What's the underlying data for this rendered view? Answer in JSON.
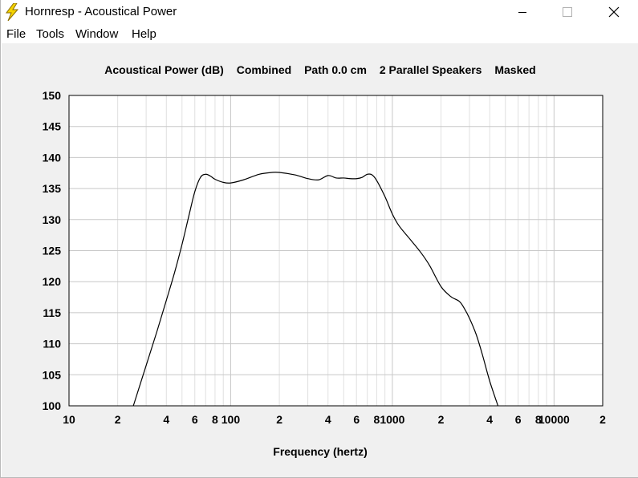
{
  "window": {
    "title": "Hornresp - Acoustical Power",
    "icon": "lightning-icon",
    "controls": {
      "minimize": "minimize-icon",
      "maximize": "maximize-icon",
      "close": "close-icon"
    }
  },
  "menu": {
    "items": [
      {
        "label": "File"
      },
      {
        "label": "Tools"
      },
      {
        "label": "Window"
      },
      {
        "label": "Help"
      }
    ]
  },
  "plot_header": {
    "quantity": "Acoustical Power (dB)",
    "mode": "Combined",
    "path": "Path 0.0 cm",
    "speakers": "2 Parallel Speakers",
    "masked": "Masked"
  },
  "colors": {
    "background": "#f0f0f0",
    "plot_area": "#ffffff",
    "grid_major": "#c8c8c8",
    "grid_minor": "#e0e0e0",
    "curve": "#000000"
  },
  "chart_data": {
    "type": "line",
    "title": "Acoustical Power (dB)   Combined   Path 0.0 cm   2 Parallel Speakers   Masked",
    "xlabel": "Frequency (hertz)",
    "ylabel": "",
    "xscale": "log",
    "xlim": [
      10,
      20000
    ],
    "ylim": [
      100,
      150
    ],
    "grid": true,
    "y_tick_labels": [
      "100",
      "105",
      "110",
      "115",
      "120",
      "125",
      "130",
      "135",
      "140",
      "145",
      "150"
    ],
    "x_tick_labels": [
      {
        "x": 10,
        "label": "10"
      },
      {
        "x": 20,
        "label": "2"
      },
      {
        "x": 40,
        "label": "4"
      },
      {
        "x": 60,
        "label": "6"
      },
      {
        "x": 80,
        "label": "8"
      },
      {
        "x": 100,
        "label": "100"
      },
      {
        "x": 200,
        "label": "2"
      },
      {
        "x": 400,
        "label": "4"
      },
      {
        "x": 600,
        "label": "6"
      },
      {
        "x": 800,
        "label": "8"
      },
      {
        "x": 1000,
        "label": "1000"
      },
      {
        "x": 2000,
        "label": "2"
      },
      {
        "x": 4000,
        "label": "4"
      },
      {
        "x": 6000,
        "label": "6"
      },
      {
        "x": 8000,
        "label": "8"
      },
      {
        "x": 10000,
        "label": "10000"
      },
      {
        "x": 20000,
        "label": "2"
      }
    ],
    "series": [
      {
        "x": [
          25,
          30,
          35,
          40,
          45,
          50,
          55,
          60,
          65,
          70,
          75,
          80,
          90,
          100,
          120,
          150,
          180,
          200,
          250,
          300,
          350,
          400,
          450,
          500,
          550,
          600,
          650,
          700,
          750,
          800,
          900,
          1000,
          1100,
          1300,
          1500,
          1700,
          2000,
          2300,
          2600,
          2800,
          3000,
          3300,
          3600,
          4000,
          4500
        ],
        "y": [
          100,
          106.5,
          112,
          117,
          121.5,
          126,
          130.5,
          134.5,
          136.8,
          137.3,
          137.0,
          136.5,
          136.0,
          135.9,
          136.4,
          137.3,
          137.6,
          137.6,
          137.2,
          136.6,
          136.4,
          137.1,
          136.7,
          136.7,
          136.6,
          136.6,
          136.8,
          137.3,
          137.2,
          136.3,
          133.7,
          130.9,
          129.0,
          126.7,
          124.7,
          122.6,
          119.2,
          117.6,
          116.8,
          115.6,
          114.1,
          111.5,
          108.3,
          104.0,
          100.0
        ]
      }
    ]
  }
}
